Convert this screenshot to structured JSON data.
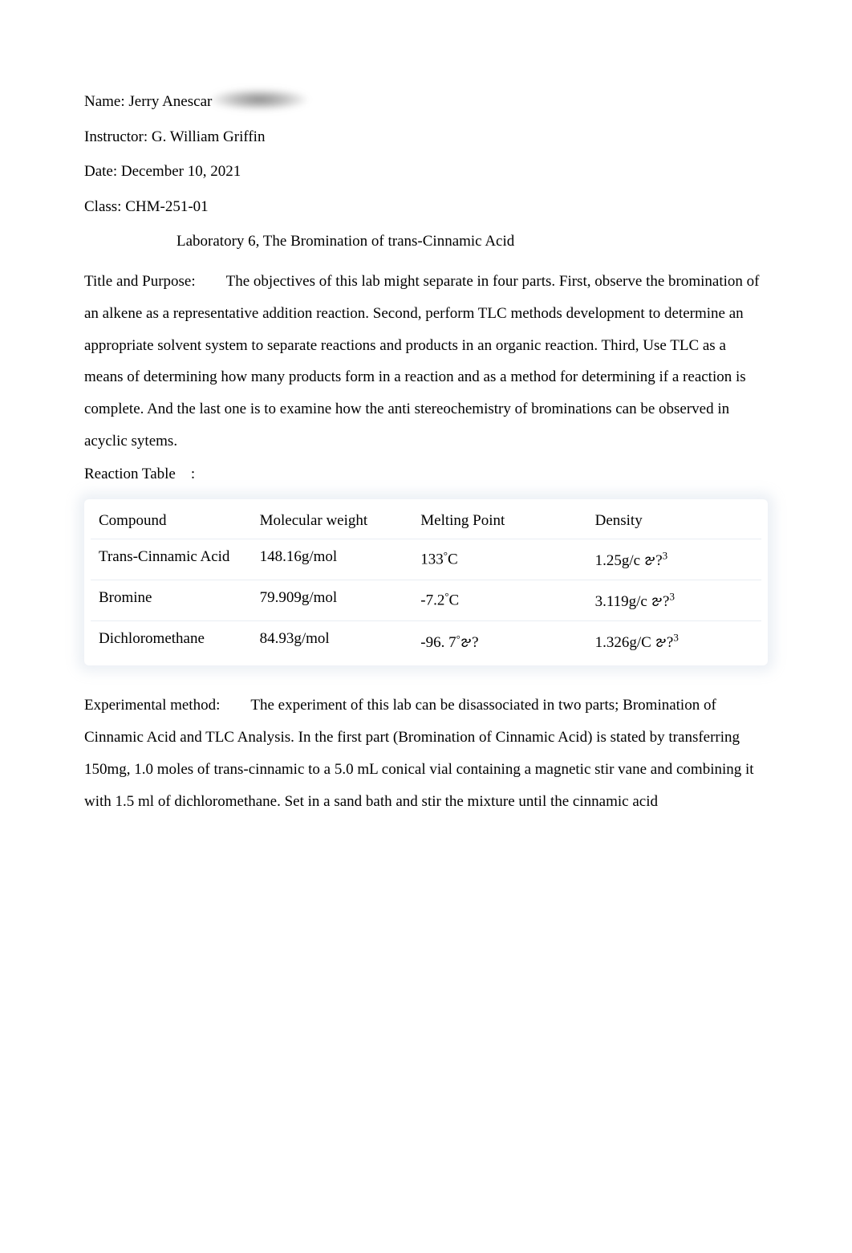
{
  "header": {
    "name_label": "Name:",
    "name_value": "Jerry Anescar",
    "instructor_label": "Instructor:",
    "instructor_value": "G. William Griffin",
    "date_label": "Date:",
    "date_value": "December 10, 2021",
    "class_label": "Class:",
    "class_value": "CHM-251-01"
  },
  "lab_title": "Laboratory 6, The Bromination of trans-Cinnamic Acid",
  "section1": {
    "label": "Title and Purpose:",
    "text": "The objectives of this lab might separate in four parts. First, observe the bromination of an alkene as a representative addition reaction. Second, perform TLC methods development to determine an appropriate solvent system to separate reactions and products in an organic reaction. Third, Use TLC as a means of determining how many products form in a reaction and as a method for determining if a reaction is complete. And the last one is to examine how the anti stereochemistry of brominations can be observed in acyclic sytems."
  },
  "reaction_table_label": "Reaction Table    :",
  "table": {
    "headers": {
      "compound": "Compound",
      "mw": "Molecular weight",
      "mp": "Melting Point",
      "density": "Density"
    },
    "rows": [
      {
        "compound": "Trans-Cinnamic Acid",
        "mw": "148.16g/mol",
        "mp_val": "133",
        "mp_unit": "C",
        "density_val": "1.25g/c",
        "density_unit": "𑄐?"
      },
      {
        "compound": "Bromine",
        "mw": "79.909g/mol",
        "mp_val": "-7.2",
        "mp_unit": "C",
        "density_val": "3.119g/c",
        "density_unit": "𑄐?"
      },
      {
        "compound": "Dichloromethane",
        "mw": "84.93g/mol",
        "mp_val": "-96. 7",
        "mp_unit": "𑄐?",
        "density_val": "1.326g/C",
        "density_unit": "𑄐?"
      }
    ]
  },
  "section2": {
    "label": "Experimental method:",
    "text": "The experiment of this lab can be disassociated in two parts; Bromination of Cinnamic Acid and TLC Analysis. In the first part (Bromination of Cinnamic Acid) is stated by transferring 150mg, 1.0 moles of trans-cinnamic to a 5.0 mL conical vial containing a magnetic stir vane and combining it with 1.5 ml of dichloromethane. Set in a sand bath and stir the mixture until the cinnamic acid"
  }
}
